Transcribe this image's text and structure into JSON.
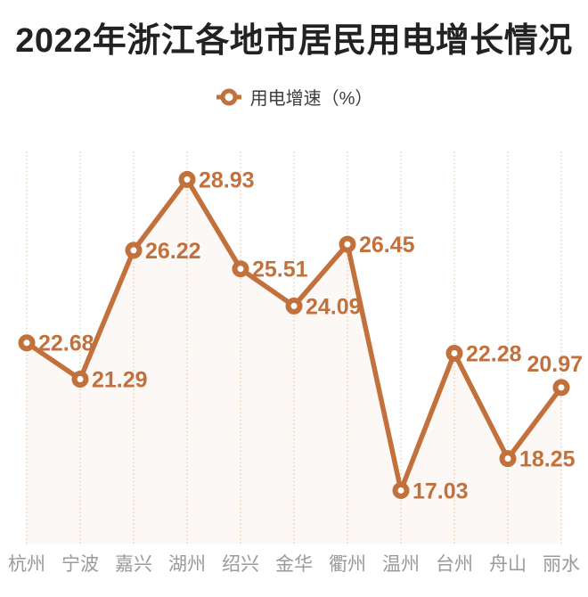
{
  "title": "2022年浙江各地市居民用电增长情况",
  "legend": {
    "label": "用电增速（%）",
    "marker": "hollow-circle-on-line"
  },
  "chart_data": {
    "type": "line",
    "title": "2022年浙江各地市居民用电增长情况",
    "categories": [
      "杭州",
      "宁波",
      "嘉兴",
      "湖州",
      "绍兴",
      "金华",
      "衢州",
      "温州",
      "台州",
      "舟山",
      "丽水"
    ],
    "series": [
      {
        "name": "用电增速（%）",
        "values": [
          22.68,
          21.29,
          26.22,
          28.93,
          25.51,
          24.09,
          26.45,
          17.03,
          22.28,
          18.25,
          20.97
        ]
      }
    ],
    "xlabel": "",
    "ylabel": "",
    "ylim": [
      15,
      30
    ],
    "grid": "vertical-dotted",
    "legend_position": "top-center",
    "value_labels": "beside-points",
    "marker_style": "hollow-circle",
    "area_fill": true
  },
  "colors": {
    "line": "#c2713c",
    "value_label": "#c2713c",
    "gridline": "#eacdb3",
    "area_fill": "rgba(194,113,60,0.05)",
    "axis_label": "#9a9a9a",
    "title": "#222222",
    "legend_text": "#3d3d3d",
    "background": "#ffffff"
  }
}
